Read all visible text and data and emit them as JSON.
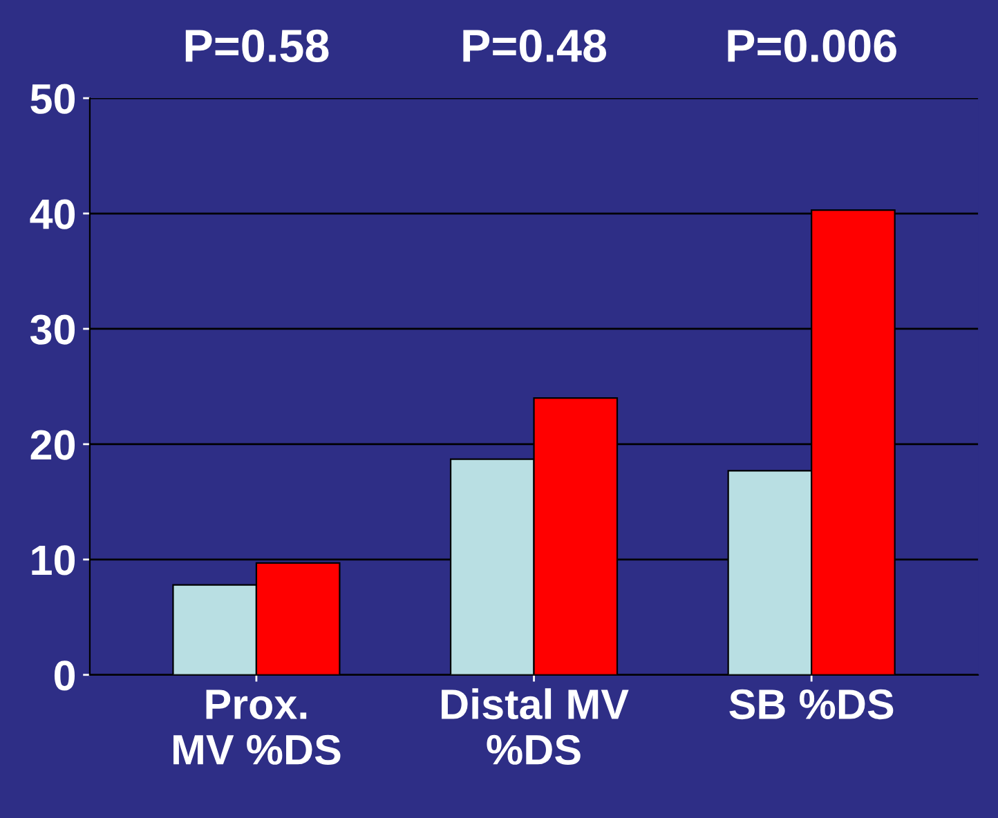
{
  "chart_data": {
    "type": "bar",
    "categories": [
      "Prox.\nMV %DS",
      "Distal MV\n%DS",
      "SB %DS"
    ],
    "series": [
      {
        "color": "#b9dfe3",
        "values": [
          7.8,
          18.7,
          17.7
        ]
      },
      {
        "color": "#ff0000",
        "values": [
          9.7,
          24.0,
          40.3
        ]
      }
    ],
    "ylim": [
      0,
      50
    ],
    "yticks": [
      0,
      10,
      20,
      30,
      40,
      50
    ],
    "grid": "y",
    "annotations": [
      "P=0.58",
      "P=0.48",
      "P=0.006"
    ]
  }
}
